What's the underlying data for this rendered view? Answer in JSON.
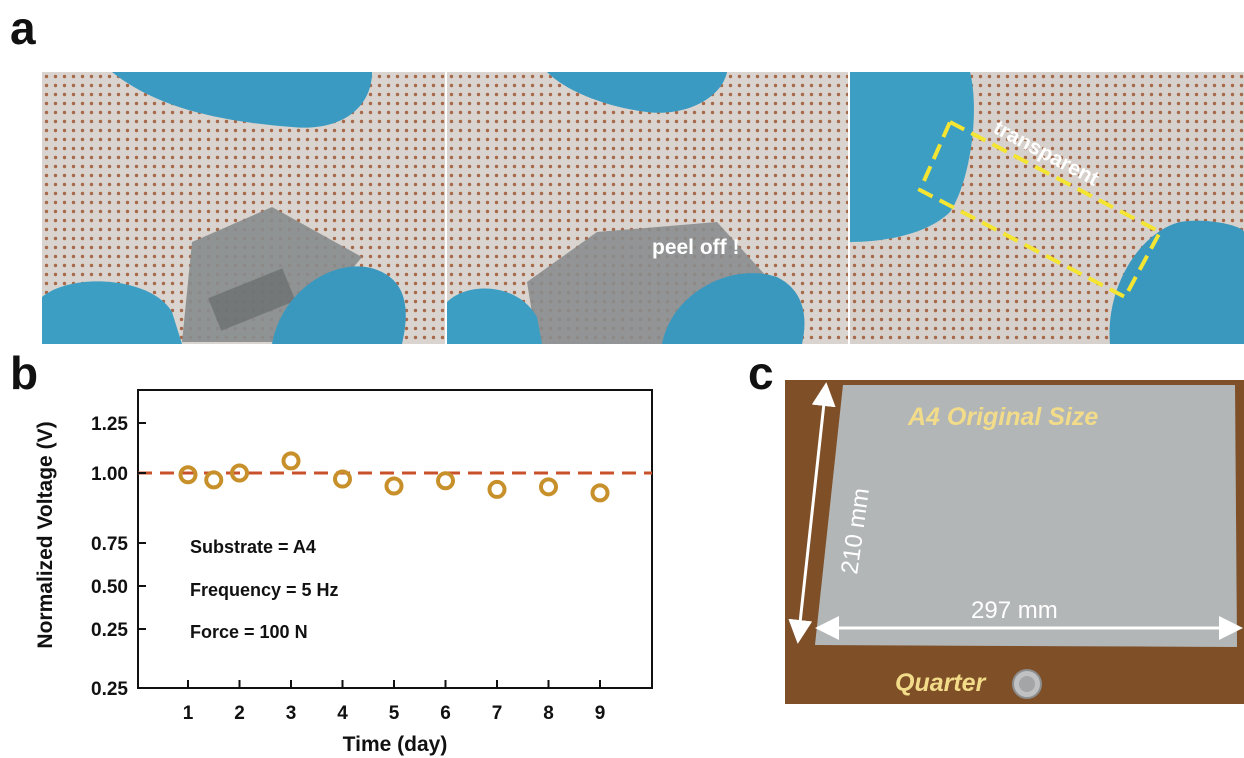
{
  "panel_labels": {
    "a": "a",
    "b": "b",
    "c": "c"
  },
  "photos": {
    "a2_caption": "peel off !",
    "a3_caption": "transparent",
    "c_title": "A4 Original Size",
    "c_height": "210 mm",
    "c_width": "297 mm",
    "c_coin": "Quarter"
  },
  "colors": {
    "marker": "#C8902A",
    "reference_line": "#C8502A",
    "glove": "#3d9ec4",
    "table": "#7a4a24",
    "caption_yellow": "#f2dc8a"
  },
  "chart_data": {
    "type": "scatter",
    "xlabel": "Time (day)",
    "ylabel": "Normalized Voltage (V)",
    "x_ticks": [
      "1",
      "2",
      "3",
      "4",
      "5",
      "6",
      "7",
      "8",
      "9"
    ],
    "y_ticks": [
      "0.25",
      "0.25",
      "0.50",
      "0.75",
      "1.00",
      "1.25"
    ],
    "reference_line_y": 1.0,
    "points": [
      {
        "x": 1.0,
        "y": 0.99
      },
      {
        "x": 1.5,
        "y": 0.96
      },
      {
        "x": 2.0,
        "y": 1.0
      },
      {
        "x": 3.0,
        "y": 1.07
      },
      {
        "x": 4.0,
        "y": 0.965
      },
      {
        "x": 5.0,
        "y": 0.925
      },
      {
        "x": 6.0,
        "y": 0.955
      },
      {
        "x": 7.0,
        "y": 0.905
      },
      {
        "x": 8.0,
        "y": 0.92
      },
      {
        "x": 9.0,
        "y": 0.885
      }
    ],
    "annotations": [
      "Substrate = A4",
      "Frequency = 5 Hz",
      "Force = 100 N"
    ],
    "grid": false,
    "legend": "none"
  }
}
